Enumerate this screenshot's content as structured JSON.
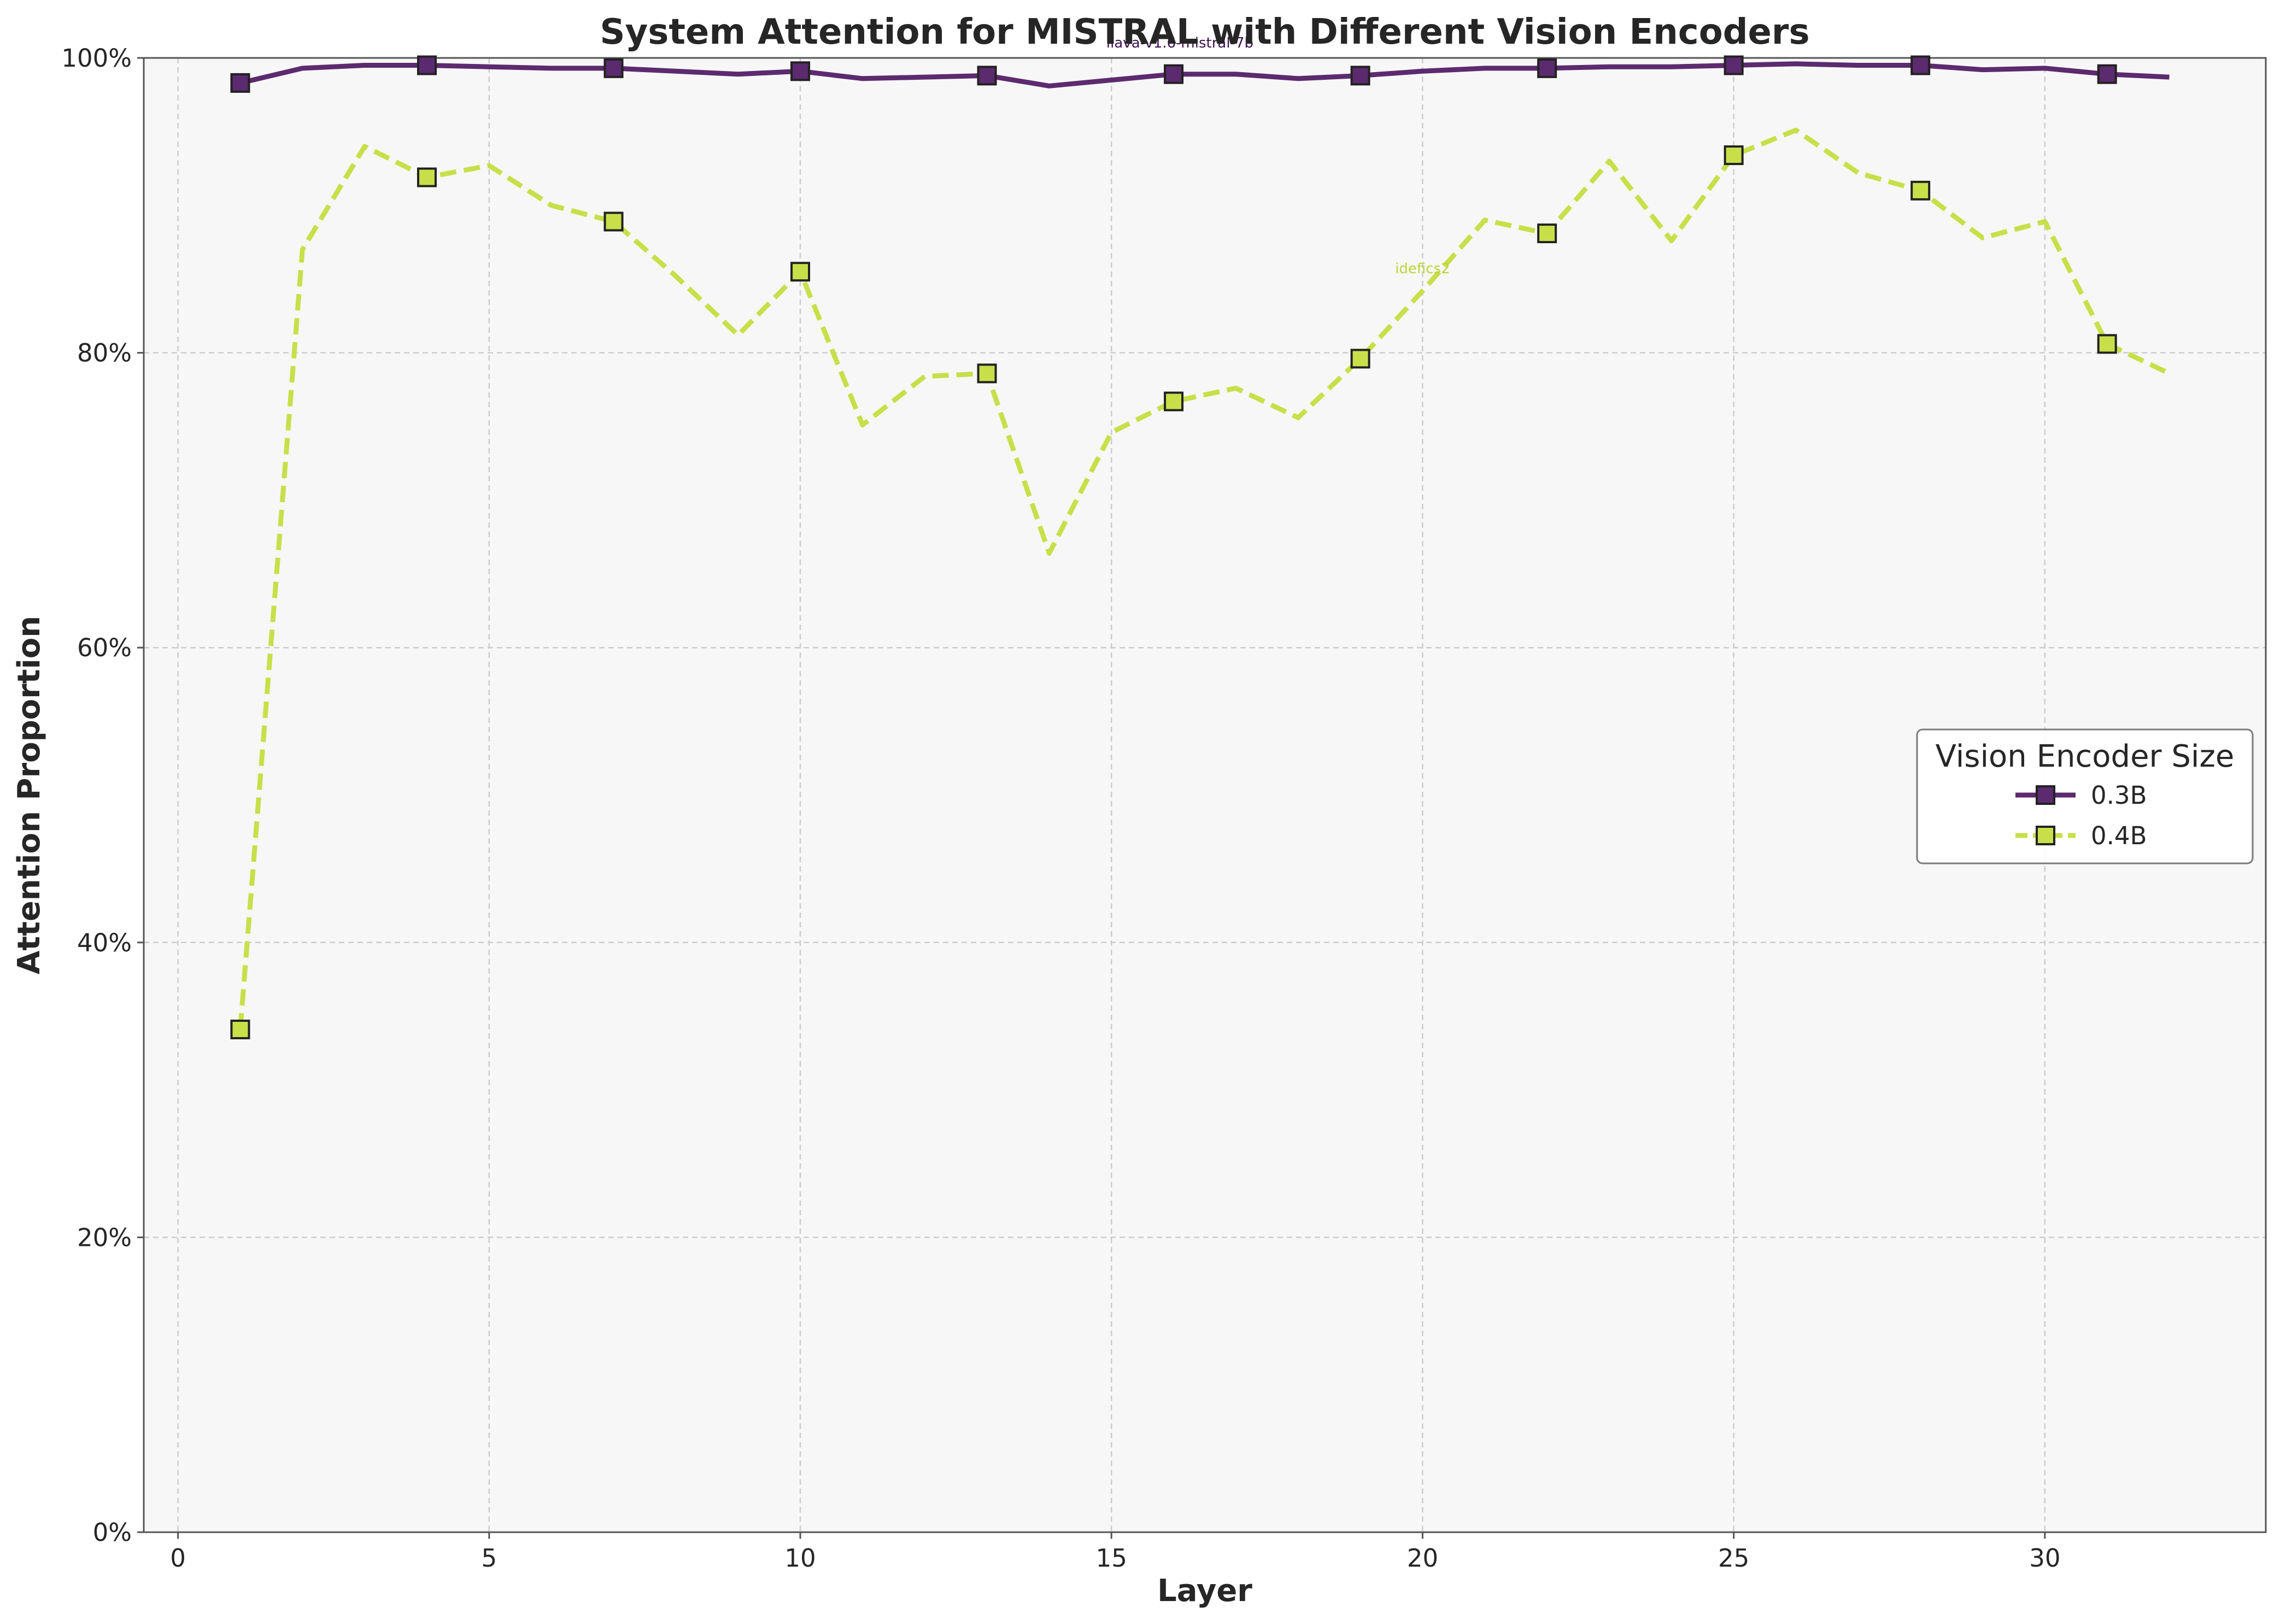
{
  "chart_data": {
    "type": "line",
    "title": "System Attention for MISTRAL with Different Vision Encoders",
    "xlabel": "Layer",
    "ylabel": "Attention Proportion",
    "xlim": [
      -0.55,
      33.55
    ],
    "ylim": [
      0,
      100
    ],
    "x_ticks": [
      0,
      5,
      10,
      15,
      20,
      25,
      30
    ],
    "y_ticks": [
      0,
      20,
      40,
      60,
      80,
      100
    ],
    "y_tick_labels": [
      "0%",
      "20%",
      "40%",
      "60%",
      "80%",
      "100%"
    ],
    "grid": true,
    "legend": {
      "title": "Vision Encoder Size",
      "placement": "center-right"
    },
    "x": [
      1,
      2,
      3,
      4,
      5,
      6,
      7,
      8,
      9,
      10,
      11,
      12,
      13,
      14,
      15,
      16,
      17,
      18,
      19,
      20,
      21,
      22,
      23,
      24,
      25,
      26,
      27,
      28,
      29,
      30,
      31,
      32
    ],
    "marker_every": 3,
    "series": [
      {
        "name": "0.3B",
        "color": "#5c2a6f",
        "dash": "solid",
        "annotation": "llava-v1.6-mistral-7b",
        "values": [
          98.3,
          99.3,
          99.5,
          99.5,
          99.4,
          99.3,
          99.3,
          99.1,
          98.9,
          99.1,
          98.6,
          98.7,
          98.8,
          98.1,
          98.5,
          98.9,
          98.9,
          98.6,
          98.8,
          99.1,
          99.3,
          99.3,
          99.4,
          99.4,
          99.5,
          99.6,
          99.5,
          99.5,
          99.2,
          99.3,
          98.9,
          98.7
        ]
      },
      {
        "name": "0.4B",
        "color": "#c8df4a",
        "dash": "dashed",
        "annotation": "idefics2",
        "values": [
          34.1,
          87.0,
          94.0,
          91.9,
          92.7,
          90.0,
          88.9,
          85.2,
          81.2,
          85.5,
          75.1,
          78.4,
          78.6,
          66.4,
          74.6,
          76.7,
          77.6,
          75.6,
          79.6,
          84.2,
          89.0,
          88.1,
          93.0,
          87.6,
          93.4,
          95.1,
          92.2,
          91.0,
          87.8,
          88.9,
          80.6,
          78.6
        ]
      }
    ]
  }
}
